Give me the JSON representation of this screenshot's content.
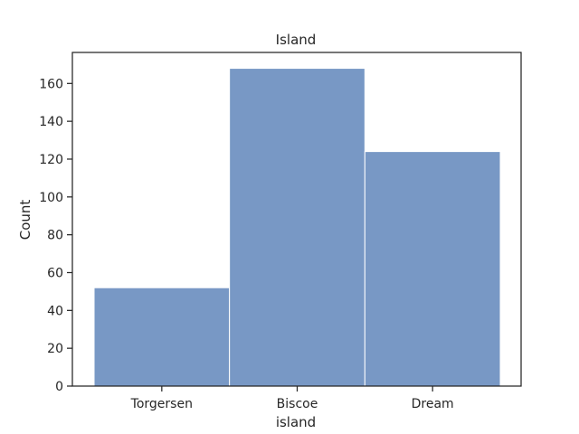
{
  "chart_data": {
    "type": "bar",
    "title": "Island",
    "xlabel": "island",
    "ylabel": "Count",
    "categories": [
      "Torgersen",
      "Biscoe",
      "Dream"
    ],
    "values": [
      52,
      168,
      124
    ],
    "ylim": [
      0,
      176.4
    ],
    "yticks": [
      0,
      20,
      40,
      60,
      80,
      100,
      120,
      140,
      160
    ],
    "grid": false,
    "bar_color": "#7898c5",
    "bar_edge_color": "#ffffff"
  }
}
